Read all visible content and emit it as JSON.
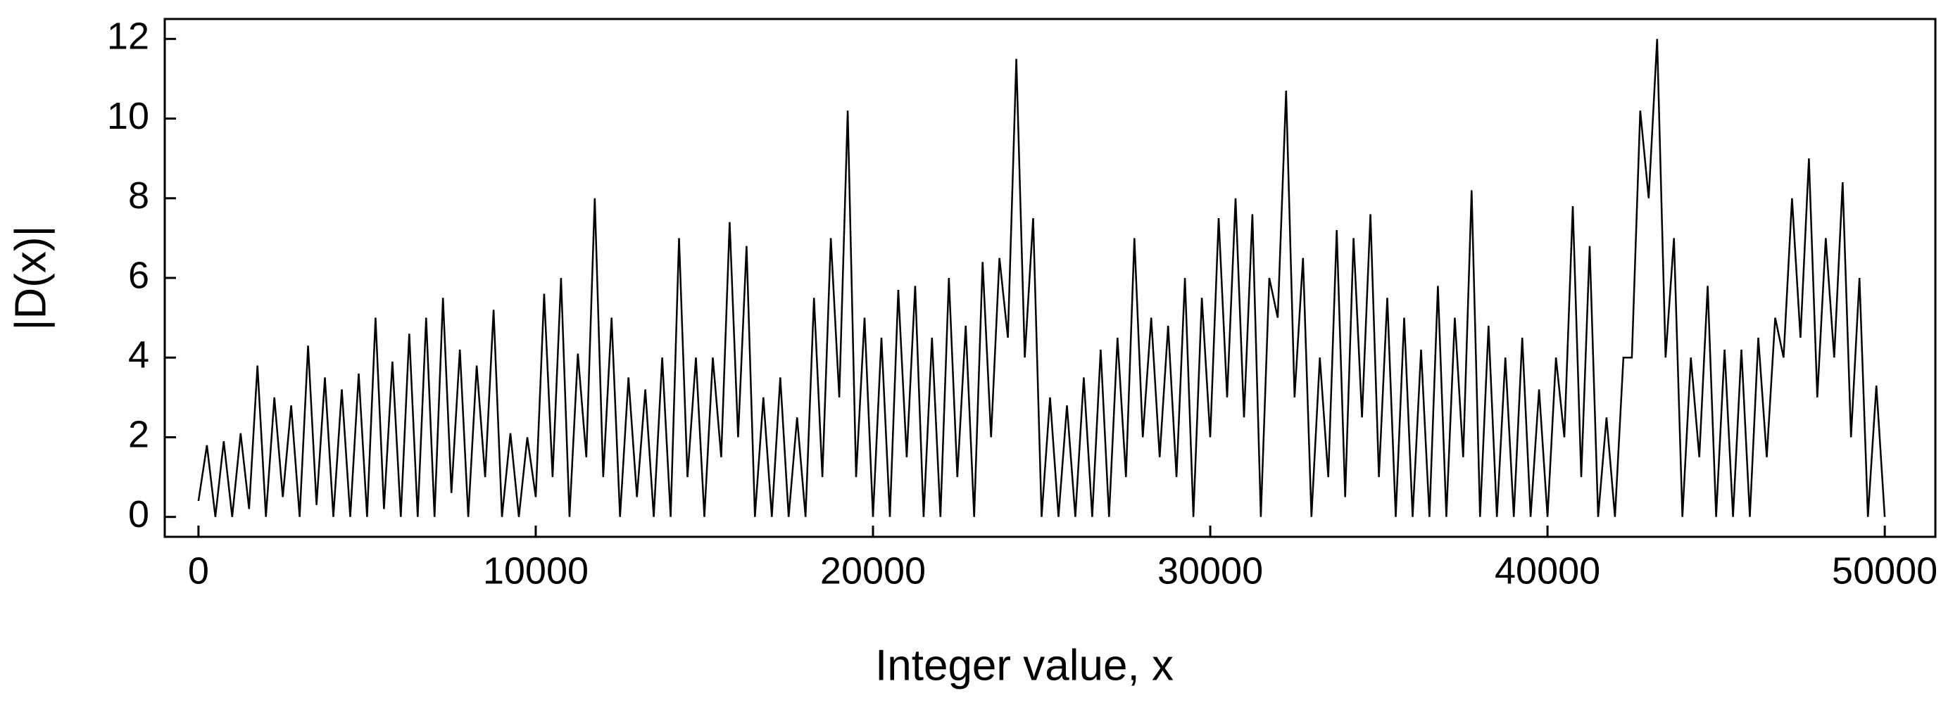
{
  "chart_data": {
    "type": "line",
    "xlabel": "Integer value, x",
    "ylabel": "|D(x)|",
    "color": "#000000",
    "xlim": [
      -1000,
      51500
    ],
    "ylim": [
      -0.5,
      12.5
    ],
    "xticks": [
      0,
      10000,
      20000,
      30000,
      40000,
      50000
    ],
    "yticks": [
      0,
      2,
      4,
      6,
      8,
      10,
      12
    ],
    "grid": false,
    "x": [
      0,
      250,
      500,
      750,
      1000,
      1250,
      1500,
      1750,
      2000,
      2250,
      2500,
      2750,
      3000,
      3250,
      3500,
      3750,
      4000,
      4250,
      4500,
      4750,
      5000,
      5250,
      5500,
      5750,
      6000,
      6250,
      6500,
      6750,
      7000,
      7250,
      7500,
      7750,
      8000,
      8250,
      8500,
      8750,
      9000,
      9250,
      9500,
      9750,
      10000,
      10250,
      10500,
      10750,
      11000,
      11250,
      11500,
      11750,
      12000,
      12250,
      12500,
      12750,
      13000,
      13250,
      13500,
      13750,
      14000,
      14250,
      14500,
      14750,
      15000,
      15250,
      15500,
      15750,
      16000,
      16250,
      16500,
      16750,
      17000,
      17250,
      17500,
      17750,
      18000,
      18250,
      18500,
      18750,
      19000,
      19250,
      19500,
      19750,
      20000,
      20250,
      20500,
      20750,
      21000,
      21250,
      21500,
      21750,
      22000,
      22250,
      22500,
      22750,
      23000,
      23250,
      23500,
      23750,
      24000,
      24250,
      24500,
      24750,
      25000,
      25250,
      25500,
      25750,
      26000,
      26250,
      26500,
      26750,
      27000,
      27250,
      27500,
      27750,
      28000,
      28250,
      28500,
      28750,
      29000,
      29250,
      29500,
      29750,
      30000,
      30250,
      30500,
      30750,
      31000,
      31250,
      31500,
      31750,
      32000,
      32250,
      32500,
      32750,
      33000,
      33250,
      33500,
      33750,
      34000,
      34250,
      34500,
      34750,
      35000,
      35250,
      35500,
      35750,
      36000,
      36250,
      36500,
      36750,
      37000,
      37250,
      37500,
      37750,
      38000,
      38250,
      38500,
      38750,
      39000,
      39250,
      39500,
      39750,
      40000,
      40250,
      40500,
      40750,
      41000,
      41250,
      41500,
      41750,
      42000,
      42250,
      42500,
      42750,
      43000,
      43250,
      43500,
      43750,
      44000,
      44250,
      44500,
      44750,
      45000,
      45250,
      45500,
      45750,
      46000,
      46250,
      46500,
      46750,
      47000,
      47250,
      47500,
      47750,
      48000,
      48250,
      48500,
      48750,
      49000,
      49250,
      49500,
      49750,
      50000
    ],
    "values": [
      0.4,
      1.8,
      0,
      1.9,
      0,
      2.1,
      0.2,
      3.8,
      0,
      3.0,
      0.5,
      2.8,
      0,
      4.3,
      0.3,
      3.5,
      0,
      3.2,
      0,
      3.6,
      0,
      5.0,
      0.2,
      3.9,
      0,
      4.6,
      0,
      5.0,
      0,
      5.5,
      0.6,
      4.2,
      0,
      3.8,
      1.0,
      5.2,
      0,
      2.1,
      0,
      2.0,
      0.5,
      5.6,
      1.0,
      6.0,
      0,
      4.1,
      1.5,
      8.0,
      1.0,
      5.0,
      0,
      3.5,
      0.5,
      3.2,
      0,
      4.0,
      0,
      7.0,
      1.0,
      4.0,
      0,
      4.0,
      1.5,
      7.4,
      2.0,
      6.8,
      0,
      3.0,
      0,
      3.5,
      0,
      2.5,
      0,
      5.5,
      1.0,
      7.0,
      3.0,
      10.2,
      1.0,
      5.0,
      0,
      4.5,
      0,
      5.7,
      1.5,
      5.8,
      0,
      4.5,
      0,
      6.0,
      1.0,
      4.8,
      0,
      6.4,
      2.0,
      6.5,
      4.5,
      11.5,
      4.0,
      7.5,
      0,
      3.0,
      0,
      2.8,
      0,
      3.5,
      0,
      4.2,
      0,
      4.5,
      1.0,
      7.0,
      2.0,
      5.0,
      1.5,
      4.8,
      1.0,
      6.0,
      0,
      5.5,
      2.0,
      7.5,
      3.0,
      8.0,
      2.5,
      7.6,
      0,
      6.0,
      5.0,
      10.7,
      3.0,
      6.5,
      0,
      4.0,
      1.0,
      7.2,
      0.5,
      7.0,
      2.5,
      7.6,
      1.0,
      5.5,
      0,
      5.0,
      0,
      4.2,
      0,
      5.8,
      0,
      5.0,
      1.5,
      8.2,
      0,
      4.8,
      0,
      4.0,
      0,
      4.5,
      0,
      3.2,
      0,
      4.0,
      2.0,
      7.8,
      1.0,
      6.8,
      0,
      2.5,
      0,
      4.0,
      4.0,
      10.2,
      8.0,
      12.0,
      4.0,
      7.0,
      0,
      4.0,
      1.5,
      5.8,
      0,
      4.2,
      0,
      4.2,
      0,
      4.5,
      1.5,
      5.0,
      4.0,
      8.0,
      4.5,
      9.0,
      3.0,
      7.0,
      4.0,
      8.4,
      2.0,
      6.0,
      0,
      3.3,
      0
    ]
  }
}
